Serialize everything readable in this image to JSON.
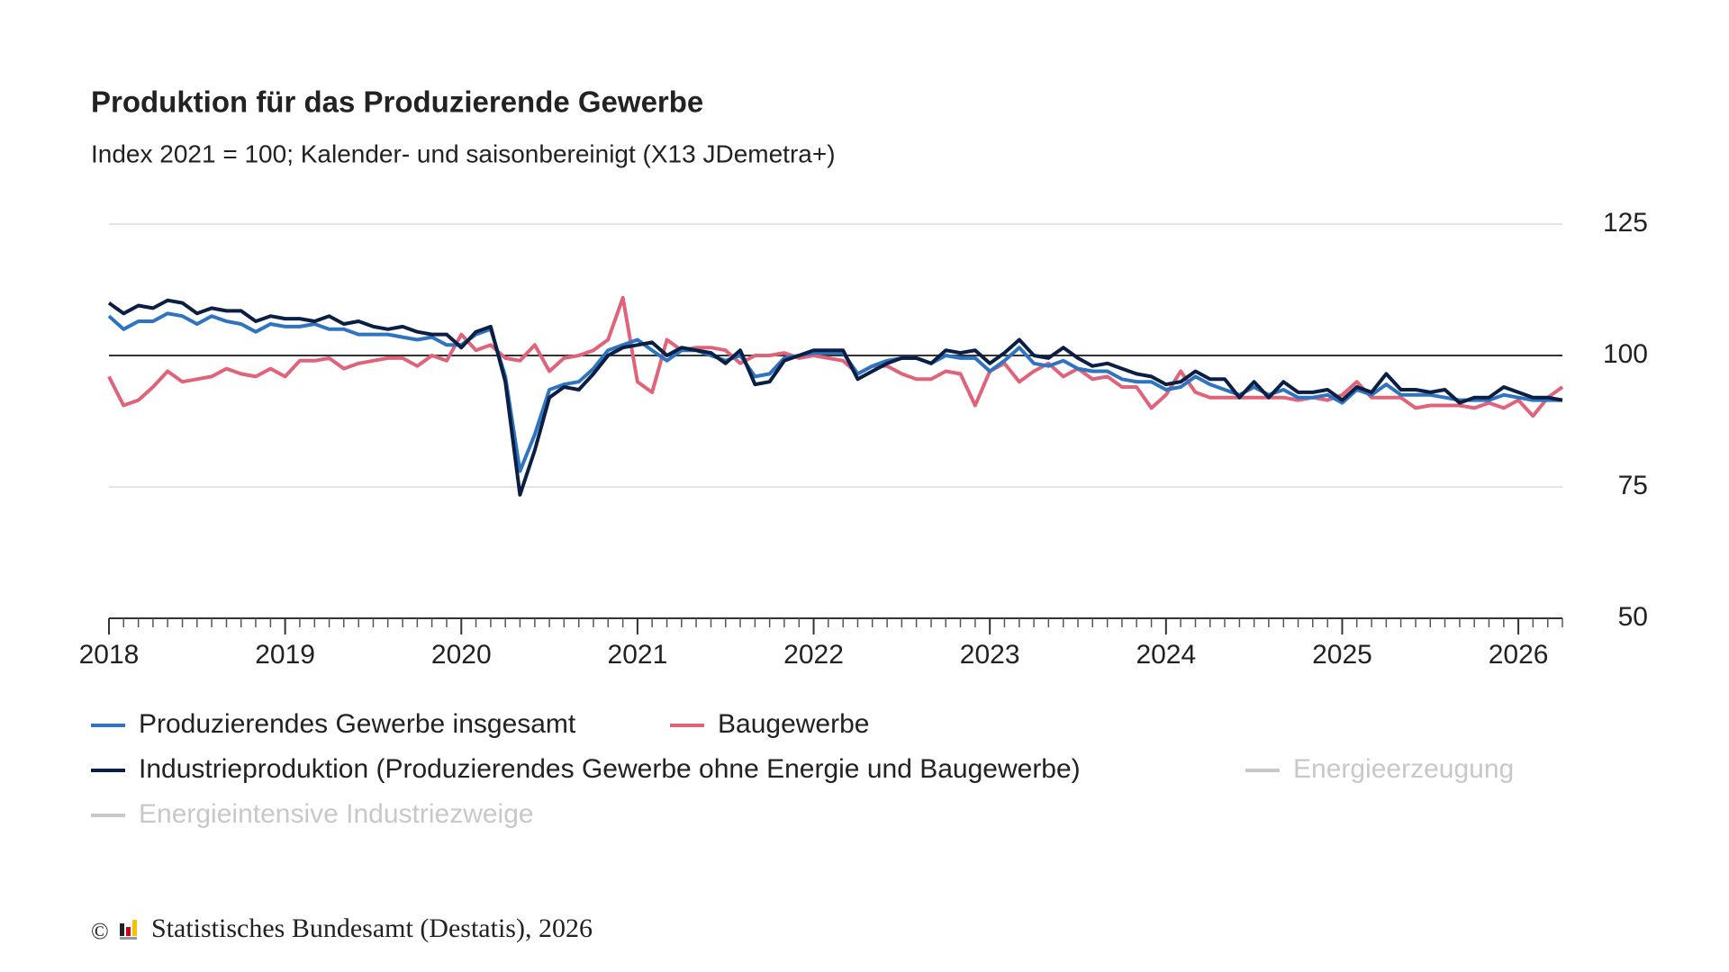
{
  "chart_data": {
    "type": "line",
    "title": "Produktion für das Produzierende Gewerbe",
    "subtitle": "Index 2021 = 100; Kalender- und saisonbereinigt (X13 JDemetra+)",
    "x": [
      2018,
      2018.083,
      2018.167,
      2018.25,
      2018.333,
      2018.417,
      2018.5,
      2018.583,
      2018.667,
      2018.75,
      2018.833,
      2018.917,
      2019,
      2019.083,
      2019.167,
      2019.25,
      2019.333,
      2019.417,
      2019.5,
      2019.583,
      2019.667,
      2019.75,
      2019.833,
      2019.917,
      2020,
      2020.083,
      2020.167,
      2020.25,
      2020.333,
      2020.417,
      2020.5,
      2020.583,
      2020.667,
      2020.75,
      2020.833,
      2020.917,
      2021,
      2021.083,
      2021.167,
      2021.25,
      2021.333,
      2021.417,
      2021.5,
      2021.583,
      2021.667,
      2021.75,
      2021.833,
      2021.917,
      2022,
      2022.083,
      2022.167,
      2022.25,
      2022.333,
      2022.417,
      2022.5,
      2022.583,
      2022.667,
      2022.75,
      2022.833,
      2022.917,
      2023,
      2023.083,
      2023.167,
      2023.25,
      2023.333,
      2023.417,
      2023.5,
      2023.583,
      2023.667,
      2023.75,
      2023.833,
      2023.917,
      2024,
      2024.083,
      2024.167,
      2024.25,
      2024.333,
      2024.417,
      2024.5,
      2024.583,
      2024.667,
      2024.75,
      2024.833,
      2024.917,
      2025,
      2025.083,
      2025.167,
      2025.25,
      2025.333,
      2025.417,
      2025.5,
      2025.583,
      2025.667,
      2025.75,
      2025.833,
      2025.917,
      2026,
      2026.083,
      2026.167,
      2026.25
    ],
    "xlim": [
      2018,
      2026.25
    ],
    "xticks": [
      2018,
      2019,
      2020,
      2021,
      2022,
      2023,
      2024,
      2025,
      2026
    ],
    "ylim": [
      50,
      125
    ],
    "yticks": [
      50,
      75,
      100,
      125
    ],
    "reference_line": 100,
    "grid": true,
    "series": [
      {
        "name": "Produzierendes Gewerbe insgesamt",
        "color": "#2f74c0",
        "values": [
          107.5,
          105,
          106.5,
          106.5,
          108,
          107.5,
          106,
          107.5,
          106.5,
          106,
          104.5,
          106,
          105.5,
          105.5,
          106,
          105,
          105,
          104,
          104,
          104,
          103.5,
          103,
          103.5,
          102,
          102,
          104,
          105,
          96,
          78,
          85,
          93.5,
          94.5,
          95,
          97.5,
          101,
          102,
          103,
          101,
          99,
          101,
          101,
          100,
          99,
          100,
          96,
          96.5,
          99.5,
          100,
          100.5,
          100.5,
          100.5,
          96.5,
          98,
          99,
          99.5,
          99.5,
          98.5,
          100,
          99.5,
          99.5,
          97,
          99,
          101.5,
          98.5,
          98,
          99,
          97.5,
          97,
          97,
          95.5,
          95,
          95,
          93.5,
          94,
          96,
          94.5,
          93.5,
          92.5,
          94,
          92.5,
          93.5,
          92,
          92,
          92.5,
          91,
          93.5,
          92.5,
          94.5,
          92.5,
          92.5,
          92.5,
          92,
          91.5,
          91.5,
          91.5,
          92.5,
          92,
          91.5,
          91.5,
          91.5
        ]
      },
      {
        "name": "Baugewerbe",
        "color": "#e0637a",
        "values": [
          96,
          90.5,
          91.5,
          94,
          97,
          95,
          95.5,
          96,
          97.5,
          96.5,
          96,
          97.5,
          96,
          99,
          99,
          99.5,
          97.5,
          98.5,
          99,
          99.5,
          99.5,
          98,
          100,
          99,
          104,
          101,
          102,
          99.5,
          99,
          102,
          97,
          99.5,
          100,
          101,
          103,
          111,
          95,
          93,
          103,
          101,
          101.5,
          101.5,
          101,
          98.5,
          100,
          100,
          100.5,
          99.5,
          100,
          99.5,
          99,
          96.5,
          98,
          98,
          96.5,
          95.5,
          95.5,
          97,
          96.5,
          90.5,
          97,
          98.5,
          95,
          97,
          98.5,
          96,
          97.5,
          95.5,
          96,
          94,
          94,
          90,
          92.5,
          97,
          93,
          92,
          92,
          92,
          92,
          92,
          92,
          91.5,
          92,
          91.5,
          92.5,
          95,
          92,
          92,
          92,
          90,
          90.5,
          90.5,
          90.5,
          90,
          91,
          90,
          91.5,
          88.5,
          92,
          94
        ]
      },
      {
        "name": "Industrieproduktion (Produzierendes Gewerbe ohne Energie und Baugewerbe)",
        "color": "#0b1f44",
        "values": [
          110,
          108,
          109.5,
          109,
          110.5,
          110,
          108,
          109,
          108.5,
          108.5,
          106.5,
          107.5,
          107,
          107,
          106.5,
          107.5,
          106,
          106.5,
          105.5,
          105,
          105.5,
          104.5,
          104,
          104,
          101.5,
          104.5,
          105.5,
          95,
          73.5,
          82,
          92,
          94,
          93.5,
          96.5,
          100,
          101.5,
          102,
          102.5,
          100,
          101.5,
          101,
          100.5,
          98.5,
          101,
          94.5,
          95,
          99,
          100,
          101,
          101,
          101,
          95.5,
          97,
          98.5,
          99.5,
          99.5,
          98.5,
          101,
          100.5,
          101,
          98.5,
          100.5,
          103,
          100,
          99.5,
          101.5,
          99.5,
          98,
          98.5,
          97.5,
          96.5,
          96,
          94.5,
          95,
          97,
          95.5,
          95.5,
          92,
          95,
          92,
          95,
          93,
          93,
          93.5,
          91.5,
          94,
          93,
          96.5,
          93.5,
          93.5,
          93,
          93.5,
          91,
          92,
          92,
          94,
          93,
          92,
          92,
          91.5
        ]
      }
    ],
    "hidden_series": [
      "Energieerzeugung",
      "Energieintensive Industriezweige"
    ],
    "hidden_color": "#c8c8c8"
  },
  "footer": {
    "copyright": "©",
    "source": "Statistisches Bundesamt (Destatis), 2026"
  }
}
